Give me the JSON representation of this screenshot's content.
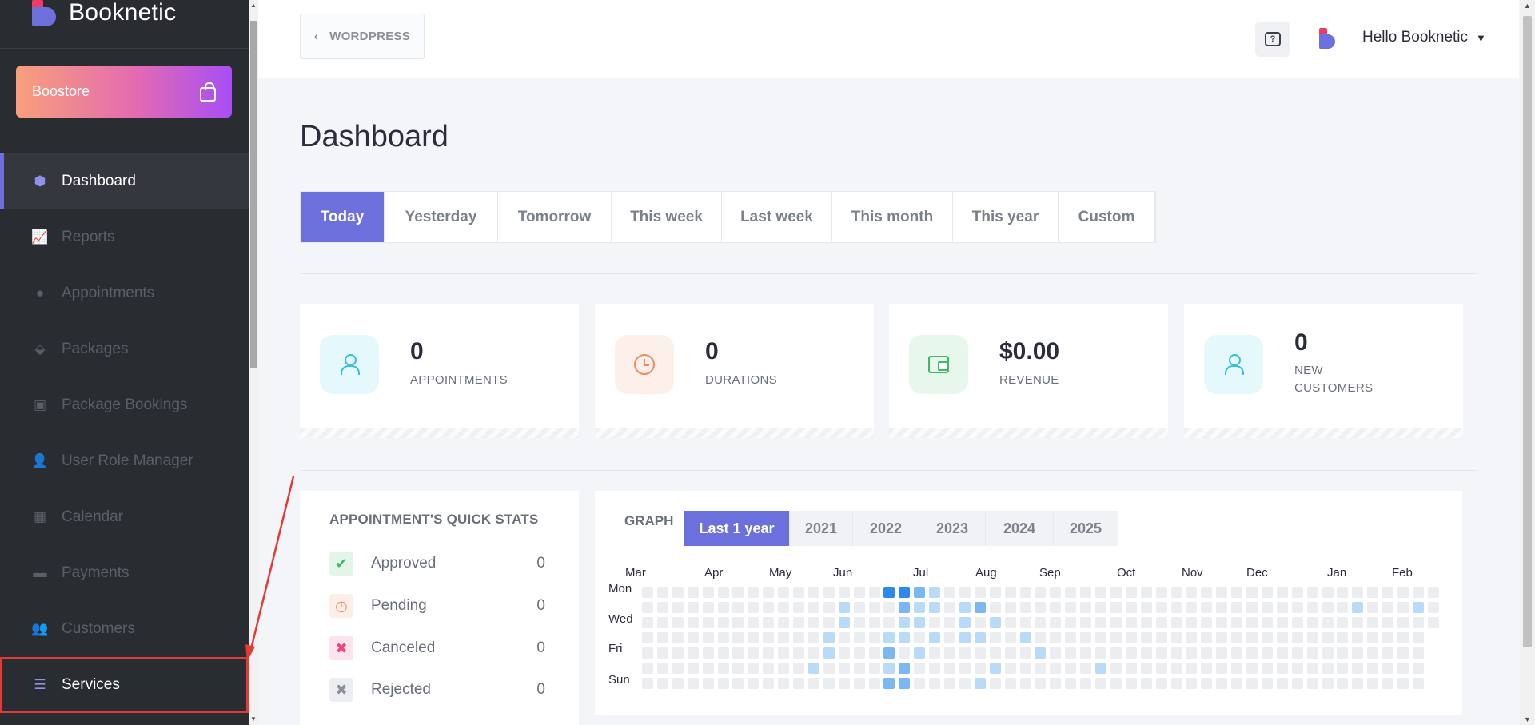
{
  "brand": {
    "name": "Booknetic"
  },
  "sidebar": {
    "boostore_label": "Boostore",
    "items": [
      {
        "label": "Dashboard",
        "icon": "cube-icon",
        "glyph": "⬢",
        "state": "active"
      },
      {
        "label": "Reports",
        "icon": "chart-icon",
        "glyph": "📈",
        "state": ""
      },
      {
        "label": "Appointments",
        "icon": "clock-icon",
        "glyph": "●",
        "state": ""
      },
      {
        "label": "Packages",
        "icon": "boxes-icon",
        "glyph": "⬙",
        "state": ""
      },
      {
        "label": "Package Bookings",
        "icon": "gift-icon",
        "glyph": "▣",
        "state": ""
      },
      {
        "label": "User Role Manager",
        "icon": "user-plus-icon",
        "glyph": "👤",
        "state": ""
      },
      {
        "label": "Calendar",
        "icon": "calendar-icon",
        "glyph": "▦",
        "state": ""
      },
      {
        "label": "Payments",
        "icon": "wallet-icon",
        "glyph": "▬",
        "state": ""
      },
      {
        "label": "Customers",
        "icon": "users-icon",
        "glyph": "👥",
        "state": ""
      },
      {
        "label": "Services",
        "icon": "list-icon",
        "glyph": "☰",
        "state": "highlight"
      }
    ]
  },
  "topbar": {
    "back_label": "WORDPRESS",
    "help_glyph": "?",
    "user_greeting": "Hello Booknetic"
  },
  "main": {
    "title": "Dashboard",
    "period_tabs": [
      "Today",
      "Yesterday",
      "Tomorrow",
      "This week",
      "Last week",
      "This month",
      "This year",
      "Custom"
    ],
    "active_period": "Today",
    "stats": [
      {
        "value": "0",
        "label": "APPOINTMENTS",
        "icon": "user-icon",
        "bg": "#e5f8fb"
      },
      {
        "value": "0",
        "label": "DURATIONS",
        "icon": "clock-icon",
        "bg": "#fdf0ea"
      },
      {
        "value": "$0.00",
        "label": "REVENUE",
        "icon": "wallet-icon",
        "bg": "#e8f7ec"
      },
      {
        "value": "0",
        "label": "NEW CUSTOMERS",
        "icon": "user-icon",
        "bg": "#e5f8fb"
      }
    ],
    "quick_stats": {
      "title": "APPOINTMENT'S QUICK STATS",
      "rows": [
        {
          "label": "Approved",
          "count": "0",
          "glyph": "✔",
          "color": "#3fb86a",
          "bg": "#e3f5e9"
        },
        {
          "label": "Pending",
          "count": "0",
          "glyph": "◷",
          "color": "#ee8a62",
          "bg": "#fdeee7"
        },
        {
          "label": "Canceled",
          "count": "0",
          "glyph": "✖",
          "color": "#f0447a",
          "bg": "#fde4ec"
        },
        {
          "label": "Rejected",
          "count": "0",
          "glyph": "✖",
          "color": "#8a8f98",
          "bg": "#eceef1"
        }
      ]
    },
    "graph": {
      "label": "GRAPH",
      "tabs": [
        "Last 1 year",
        "2021",
        "2022",
        "2023",
        "2024",
        "2025"
      ],
      "active_tab": "Last 1 year",
      "months": [
        "Mar",
        "Apr",
        "May",
        "Jun",
        "Jul",
        "Aug",
        "Sep",
        "Oct",
        "Nov",
        "Dec",
        "Jan",
        "Feb"
      ],
      "day_labels": [
        "Mon",
        "Wed",
        "Fri",
        "Sun"
      ]
    }
  },
  "colors": {
    "accent": "#6c70dc",
    "sidebar_bg": "#292d32",
    "highlight": "#e53935"
  }
}
